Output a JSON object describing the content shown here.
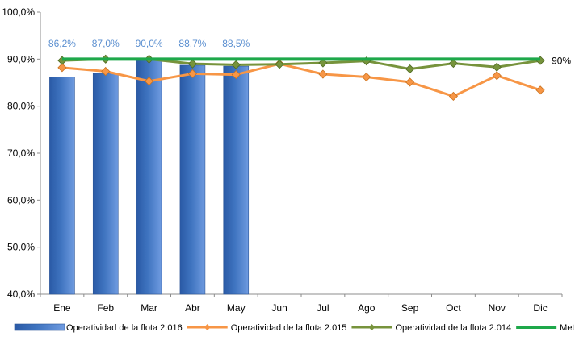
{
  "chart_data": {
    "type": "bar",
    "categories": [
      "Ene",
      "Feb",
      "Mar",
      "Abr",
      "May",
      "Jun",
      "Jul",
      "Ago",
      "Sep",
      "Oct",
      "Nov",
      "Dic"
    ],
    "ylim": [
      40,
      100
    ],
    "yticks": [
      "40,0%",
      "50,0%",
      "60,0%",
      "70,0%",
      "80,0%",
      "90,0%",
      "100,0%"
    ],
    "bar_series": {
      "name": "Operatividad de la flota 2.016",
      "color": "#3f74c0",
      "values": [
        86.2,
        87.0,
        90.0,
        88.7,
        88.5
      ],
      "labels": [
        "86,2%",
        "87,0%",
        "90,0%",
        "88,7%",
        "88,5%"
      ]
    },
    "line_series": [
      {
        "name": "Operatividad de la flota 2.015",
        "color": "#f79646",
        "values": [
          88.2,
          87.4,
          85.3,
          86.9,
          86.7,
          89.0,
          86.8,
          86.2,
          85.1,
          82.1,
          86.5,
          83.4
        ]
      },
      {
        "name": "Operatividad de la flota 2.014",
        "color": "#77933c",
        "values": [
          89.7,
          90.0,
          90.0,
          89.0,
          88.8,
          88.9,
          89.2,
          89.6,
          87.9,
          89.1,
          88.3,
          89.7
        ]
      }
    ],
    "target_series": {
      "name": "Meta",
      "color": "#1ea84a",
      "value": 90,
      "label": "90%"
    },
    "grid": false,
    "legend_position": "bottom"
  }
}
